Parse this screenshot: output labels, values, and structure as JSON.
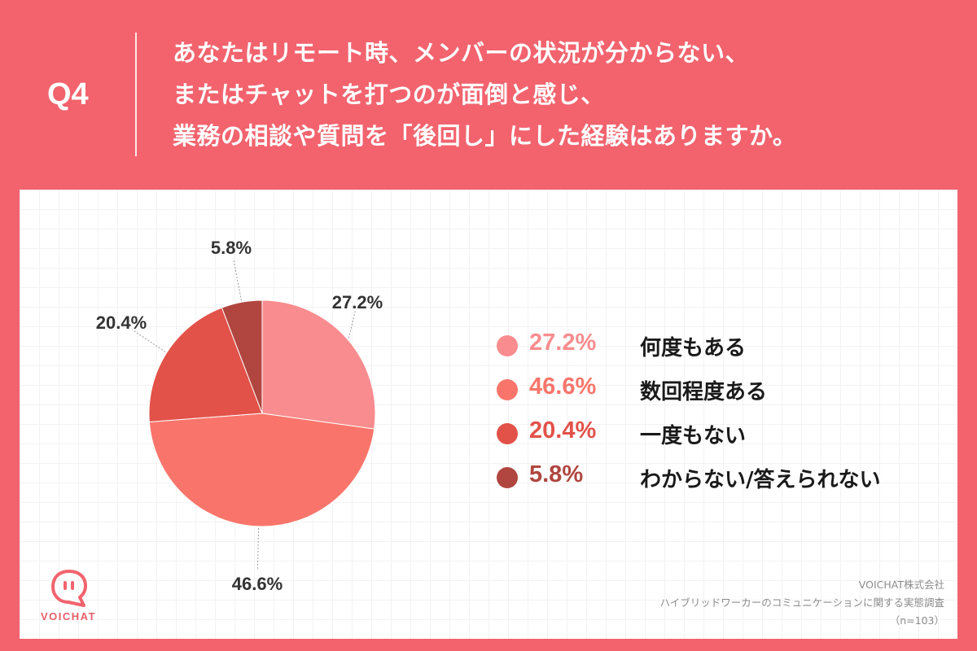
{
  "header": {
    "q_label": "Q4",
    "question_lines": [
      "あなたはリモート時、メンバーの状況が分からない、",
      "またはチャットを打つのが面倒と感じ、",
      "業務の相談や質問を「後回し」にした経験はありますか。"
    ]
  },
  "chart_data": {
    "type": "pie",
    "start_angle_deg": 0,
    "direction": "clockwise",
    "slices": [
      {
        "label": "何度もある",
        "value": 27.2,
        "display": "27.2%",
        "color": "#F98C8E"
      },
      {
        "label": "数回程度ある",
        "value": 46.6,
        "display": "46.6%",
        "color": "#F9756B"
      },
      {
        "label": "一度もない",
        "value": 20.4,
        "display": "20.4%",
        "color": "#E25249"
      },
      {
        "label": "わからない/答えられない",
        "value": 5.8,
        "display": "5.8%",
        "color": "#B0463F"
      }
    ]
  },
  "colors": {
    "background": "#F2636E",
    "data_label": "#333333"
  },
  "logo": {
    "text": "VOICHAT",
    "icon": "voichat-logo-icon"
  },
  "credits": {
    "company": "VOICHAT株式会社",
    "survey": "ハイブリッドワーカーのコミュニケーションに関する実態調査",
    "sample": "（n=103）"
  }
}
